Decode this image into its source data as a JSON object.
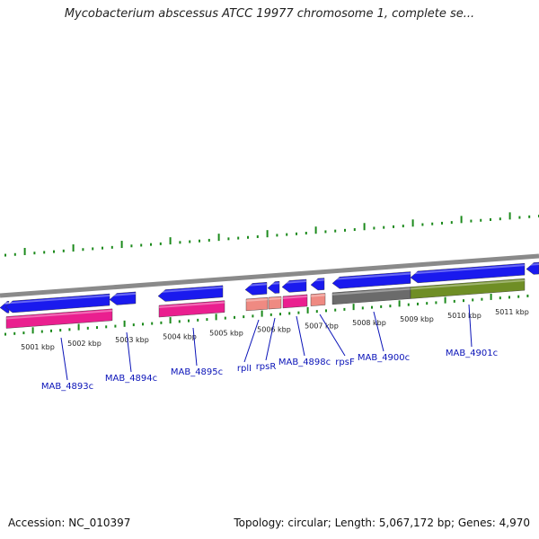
{
  "title": "Mycobacterium abscessus ATCC 19977 chromosome 1, complete se...",
  "footer": {
    "accession": "Accession: NC_010397",
    "summary": "Topology: circular; Length: 5,067,172 bp; Genes: 4,970"
  },
  "colors": {
    "cds": "#1a1aee",
    "gene_pink": "#ea1f8f",
    "gene_salmon": "#ef8a82",
    "gene_gray": "#6b6b6b",
    "gene_olive": "#6f8e25",
    "backbone": "#8a8a8a",
    "gc_ticks": "#1c8a1c",
    "label": "#0a13b8"
  },
  "scale": {
    "unit": "kbp",
    "ticks": [
      {
        "kbp": 5001,
        "label": "5001 kbp"
      },
      {
        "kbp": 5002,
        "label": "5002 kbp"
      },
      {
        "kbp": 5003,
        "label": "5003 kbp"
      },
      {
        "kbp": 5004,
        "label": "5004 kbp"
      },
      {
        "kbp": 5005,
        "label": "5005 kbp"
      },
      {
        "kbp": 5006,
        "label": "5006 kbp"
      },
      {
        "kbp": 5007,
        "label": "5007 kbp"
      },
      {
        "kbp": 5008,
        "label": "5008 kbp"
      },
      {
        "kbp": 5009,
        "label": "5009 kbp"
      },
      {
        "kbp": 5010,
        "label": "5010 kbp"
      },
      {
        "kbp": 5011,
        "label": "5011 kbp"
      }
    ]
  },
  "labels": [
    {
      "text": "MAB_4893c"
    },
    {
      "text": "MAB_4894c"
    },
    {
      "text": "MAB_4895c"
    },
    {
      "text": "rplI"
    },
    {
      "text": "rpsR"
    },
    {
      "text": "MAB_4898c"
    },
    {
      "text": "rpsF"
    },
    {
      "text": "MAB_4900c"
    },
    {
      "text": "MAB_4901c"
    }
  ]
}
